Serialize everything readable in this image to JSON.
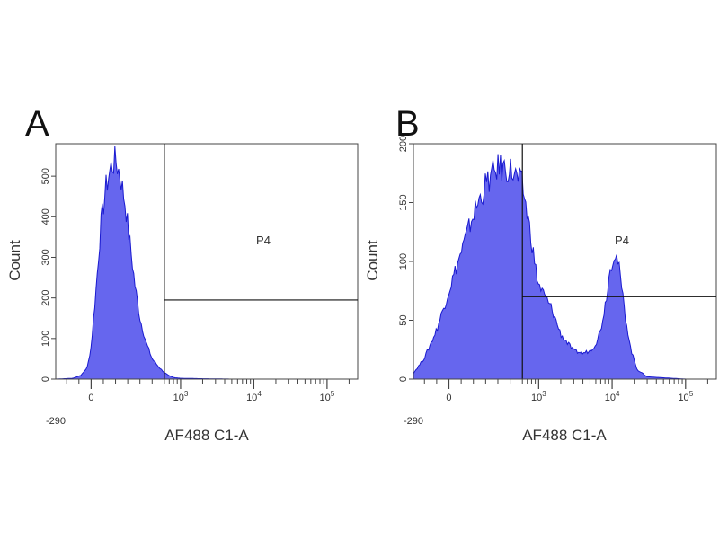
{
  "chart_data": [
    {
      "type": "area",
      "panel_label": "A",
      "xlabel": "AF488 C1-A",
      "ylabel": "Count",
      "x_scale": "biexponential",
      "xlim": [
        -290,
        262144
      ],
      "x_ticks": [
        {
          "value": 0,
          "label": "0"
        },
        {
          "value": 1000,
          "label": "10",
          "exponent": "3"
        },
        {
          "value": 10000,
          "label": "10",
          "exponent": "4"
        },
        {
          "value": 100000,
          "label": "10",
          "exponent": "5"
        }
      ],
      "x_min_label": "-290",
      "ylim": [
        0,
        580
      ],
      "y_ticks": [
        0,
        100,
        200,
        300,
        400,
        500
      ],
      "fill_color": "#6666ee",
      "edge_color": "#1a1ad0",
      "x": [
        -290,
        -150,
        -80,
        -30,
        0,
        40,
        80,
        120,
        160,
        200,
        240,
        280,
        320,
        360,
        400,
        450,
        500,
        560,
        620,
        700,
        800,
        1000,
        2000,
        5000,
        20000,
        100000,
        262144
      ],
      "values": [
        0,
        2,
        10,
        30,
        80,
        220,
        380,
        470,
        520,
        540,
        500,
        430,
        330,
        230,
        150,
        90,
        50,
        28,
        14,
        8,
        4,
        2,
        1,
        0,
        0,
        0,
        0
      ],
      "gate": {
        "name": "P4",
        "x_start": 600,
        "x_end": 262144,
        "y_divider": 195
      }
    },
    {
      "type": "area",
      "panel_label": "B",
      "xlabel": "AF488 C1-A",
      "ylabel": "Count",
      "x_scale": "biexponential",
      "xlim": [
        -290,
        262144
      ],
      "x_ticks": [
        {
          "value": 0,
          "label": "0"
        },
        {
          "value": 1000,
          "label": "10",
          "exponent": "3"
        },
        {
          "value": 10000,
          "label": "10",
          "exponent": "4"
        },
        {
          "value": 100000,
          "label": "10",
          "exponent": "5"
        }
      ],
      "x_min_label": "-290",
      "ylim": [
        0,
        200
      ],
      "y_ticks": [
        0,
        50,
        100,
        150,
        200
      ],
      "fill_color": "#6666ee",
      "edge_color": "#1a1ad0",
      "x": [
        -290,
        -200,
        -100,
        0,
        100,
        200,
        300,
        400,
        500,
        600,
        700,
        800,
        900,
        1000,
        1500,
        2000,
        3000,
        4000,
        5000,
        6000,
        7000,
        8000,
        9000,
        10000,
        11000,
        12000,
        13000,
        15000,
        18000,
        22000,
        30000,
        100000,
        262144
      ],
      "values": [
        5,
        18,
        42,
        75,
        108,
        140,
        165,
        180,
        178,
        165,
        140,
        118,
        95,
        80,
        60,
        38,
        24,
        22,
        24,
        30,
        42,
        62,
        85,
        102,
        108,
        100,
        85,
        55,
        25,
        8,
        2,
        0,
        0
      ],
      "gate": {
        "name": "P4",
        "x_start": 600,
        "x_end": 262144,
        "y_divider": 70
      }
    }
  ]
}
